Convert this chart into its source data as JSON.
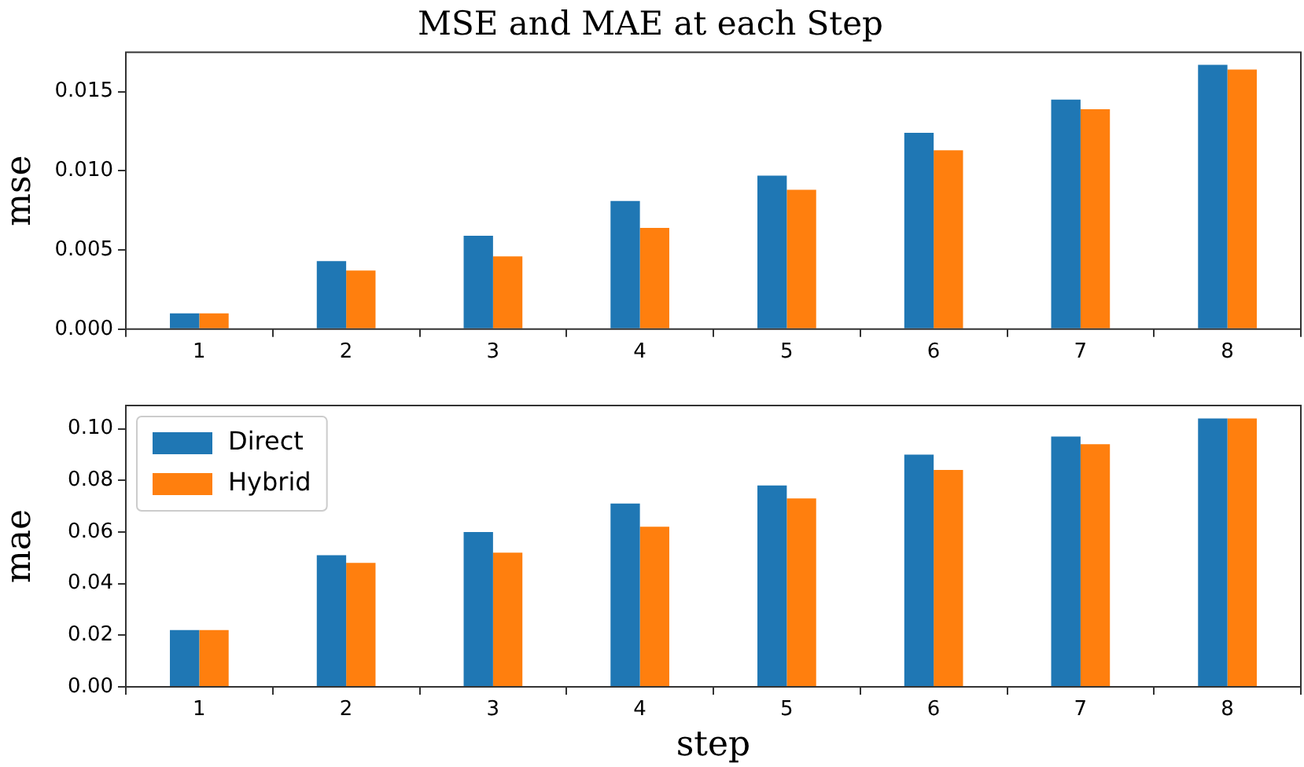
{
  "chart_data": [
    {
      "type": "bar",
      "title": "MSE and MAE at each Step",
      "ylabel": "mse",
      "categories": [
        "1",
        "2",
        "3",
        "4",
        "5",
        "6",
        "7",
        "8"
      ],
      "series": [
        {
          "color": "#1f77b4",
          "values": [
            0.001,
            0.0043,
            0.0059,
            0.0081,
            0.0097,
            0.0124,
            0.0145,
            0.0167
          ]
        },
        {
          "color": "#ff7f0e",
          "values": [
            0.001,
            0.0037,
            0.0046,
            0.0064,
            0.0088,
            0.0113,
            0.0139,
            0.0164
          ]
        }
      ],
      "ylim": [
        0,
        0.0175
      ],
      "yticks": [
        {
          "value": 0,
          "label": "0.000"
        },
        {
          "value": 0.005,
          "label": "0.005"
        },
        {
          "value": 0.01,
          "label": "0.010"
        },
        {
          "value": 0.015,
          "label": "0.015"
        }
      ]
    },
    {
      "type": "bar",
      "xlabel": "step",
      "ylabel": "mae",
      "categories": [
        "1",
        "2",
        "3",
        "4",
        "5",
        "6",
        "7",
        "8"
      ],
      "series": [
        {
          "name": "Direct",
          "color": "#1f77b4",
          "values": [
            0.022,
            0.051,
            0.06,
            0.071,
            0.078,
            0.09,
            0.097,
            0.104
          ]
        },
        {
          "name": "Hybrid",
          "color": "#ff7f0e",
          "values": [
            0.022,
            0.048,
            0.052,
            0.062,
            0.073,
            0.084,
            0.094,
            0.104
          ]
        }
      ],
      "ylim": [
        0,
        0.109
      ],
      "yticks": [
        {
          "value": 0,
          "label": "0.00"
        },
        {
          "value": 0.02,
          "label": "0.02"
        },
        {
          "value": 0.04,
          "label": "0.04"
        },
        {
          "value": 0.06,
          "label": "0.06"
        },
        {
          "value": 0.08,
          "label": "0.08"
        },
        {
          "value": 0.1,
          "label": "0.10"
        }
      ],
      "legend": "top left"
    }
  ]
}
